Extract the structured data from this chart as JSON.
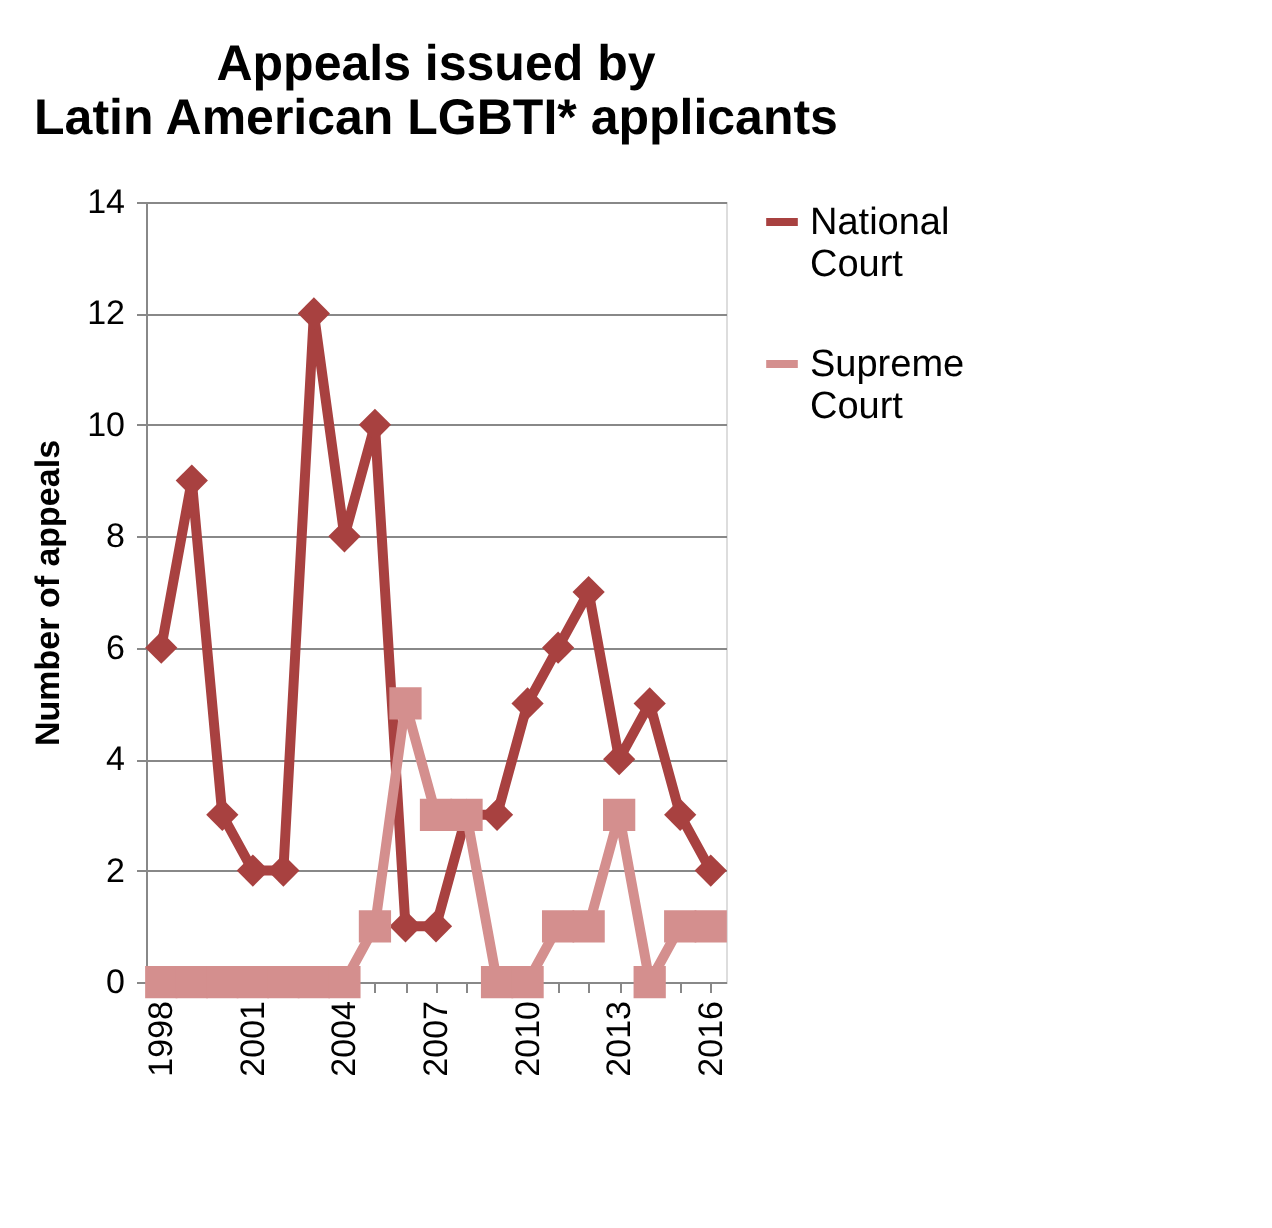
{
  "chart_data": {
    "type": "line",
    "title": "Appeals issued by\nLatin American LGBTI* applicants",
    "ylabel": "Number of appeals",
    "categories": [
      "1998",
      null,
      null,
      "2001",
      null,
      null,
      "2004",
      null,
      null,
      "2007",
      null,
      null,
      "2010",
      null,
      null,
      "2013",
      null,
      null,
      "2016"
    ],
    "series": [
      {
        "name": "National Court",
        "color": "#a84140",
        "marker": "diamond",
        "values": [
          6,
          9,
          3,
          2,
          2,
          12,
          8,
          10,
          1,
          1,
          3,
          3,
          5,
          6,
          7,
          4,
          5,
          3,
          2
        ]
      },
      {
        "name": "Supreme Court",
        "color": "#d48f8e",
        "marker": "square",
        "values": [
          0,
          0,
          0,
          0,
          0,
          0,
          0,
          1,
          5,
          3,
          3,
          0,
          0,
          1,
          1,
          3,
          0,
          1,
          1
        ]
      }
    ],
    "ylim": [
      0,
      14
    ],
    "yticks": [
      0,
      2,
      4,
      6,
      8,
      10,
      12,
      14
    ],
    "grid": "y",
    "legend": "right"
  }
}
